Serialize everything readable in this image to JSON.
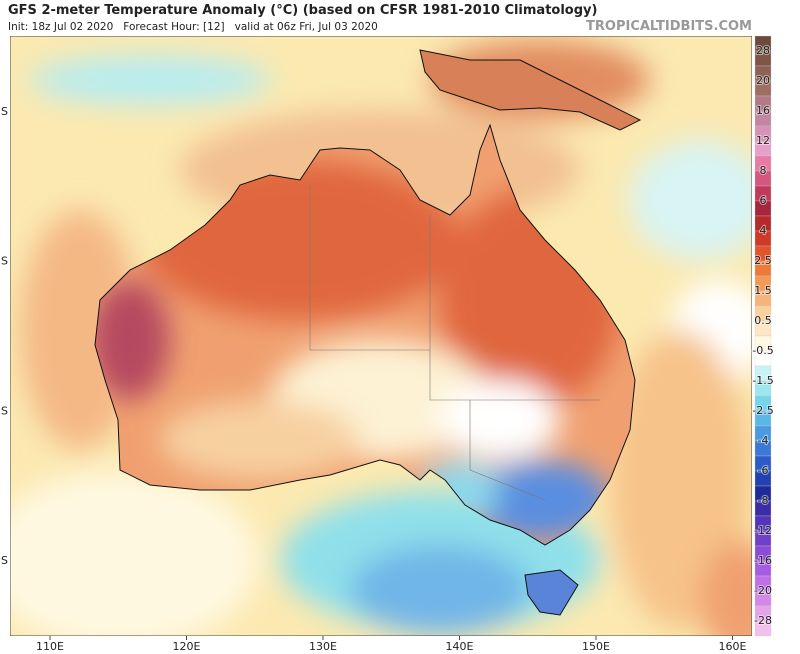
{
  "header": {
    "title": "GFS 2-meter Temperature Anomaly (°C) (based on CFSR 1981-2010 Climatology)",
    "subtitle": "Init: 18z Jul 02 2020   Forecast Hour: [12]   valid at 06z Fri, Jul 03 2020",
    "watermark": "TROPICALTIDBITS.COM"
  },
  "map": {
    "lon_labels": [
      "110E",
      "120E",
      "130E",
      "140E",
      "150E",
      "160E"
    ],
    "lat_labels": [
      "S",
      "S",
      "S",
      "S"
    ]
  },
  "colorbar": {
    "labels": [
      28,
      20,
      16,
      12,
      8,
      6,
      4,
      2.5,
      1.5,
      0.5,
      -0.5,
      -1.5,
      -2.5,
      -4,
      -6,
      -8,
      -12,
      -16,
      -20,
      -28
    ]
  }
}
